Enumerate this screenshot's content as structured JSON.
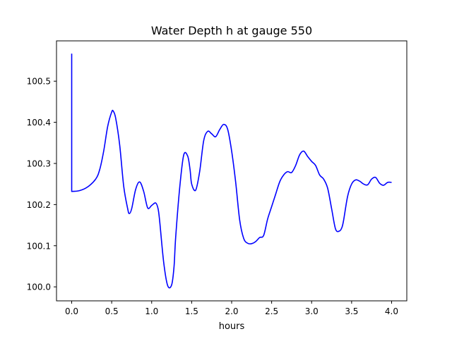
{
  "chart_data": {
    "type": "line",
    "title": "Water Depth h at gauge 550",
    "xlabel": "hours",
    "ylabel": "",
    "xlim": [
      -0.19,
      4.19
    ],
    "ylim": [
      99.966,
      100.598
    ],
    "xticks": [
      0.0,
      0.5,
      1.0,
      1.5,
      2.0,
      2.5,
      3.0,
      3.5,
      4.0
    ],
    "xtick_labels": [
      "0.0",
      "0.5",
      "1.0",
      "1.5",
      "2.0",
      "2.5",
      "3.0",
      "3.5",
      "4.0"
    ],
    "yticks": [
      100.0,
      100.1,
      100.2,
      100.3,
      100.4,
      100.5
    ],
    "ytick_labels": [
      "100.0",
      "100.1",
      "100.2",
      "100.3",
      "100.4",
      "100.5"
    ],
    "grid": false,
    "legend": "none",
    "series": [
      {
        "color": "#0000ff",
        "x": [
          0.0,
          0.0,
          0.0,
          0.1,
          0.2,
          0.3,
          0.35,
          0.4,
          0.45,
          0.5,
          0.52,
          0.55,
          0.6,
          0.65,
          0.7,
          0.72,
          0.75,
          0.8,
          0.85,
          0.9,
          0.95,
          1.0,
          1.05,
          1.08,
          1.1,
          1.15,
          1.2,
          1.25,
          1.28,
          1.3,
          1.35,
          1.4,
          1.45,
          1.48,
          1.5,
          1.55,
          1.6,
          1.65,
          1.7,
          1.75,
          1.8,
          1.85,
          1.9,
          1.95,
          2.0,
          2.05,
          2.1,
          2.15,
          2.2,
          2.25,
          2.3,
          2.35,
          2.4,
          2.45,
          2.5,
          2.55,
          2.6,
          2.65,
          2.7,
          2.75,
          2.8,
          2.85,
          2.9,
          2.95,
          3.0,
          3.05,
          3.1,
          3.15,
          3.2,
          3.25,
          3.3,
          3.35,
          3.38,
          3.4,
          3.45,
          3.5,
          3.55,
          3.6,
          3.65,
          3.7,
          3.75,
          3.8,
          3.85,
          3.9,
          3.95,
          4.0
        ],
        "y": [
          100.567,
          100.566,
          100.232,
          100.234,
          100.243,
          100.262,
          100.285,
          100.33,
          100.39,
          100.425,
          100.427,
          100.41,
          100.345,
          100.245,
          100.19,
          100.178,
          100.19,
          100.237,
          100.255,
          100.232,
          100.192,
          100.198,
          100.204,
          100.19,
          100.16,
          100.06,
          100.003,
          100.005,
          100.05,
          100.12,
          100.24,
          100.32,
          100.318,
          100.285,
          100.25,
          100.235,
          100.28,
          100.355,
          100.378,
          100.372,
          100.365,
          100.382,
          100.395,
          100.383,
          100.33,
          100.255,
          100.163,
          100.118,
          100.106,
          100.105,
          100.11,
          100.12,
          100.125,
          100.165,
          100.195,
          100.225,
          100.255,
          100.272,
          100.28,
          100.278,
          100.295,
          100.321,
          100.33,
          100.317,
          100.305,
          100.295,
          100.272,
          100.262,
          100.24,
          100.19,
          100.14,
          100.136,
          100.145,
          100.162,
          100.22,
          100.25,
          100.26,
          100.257,
          100.25,
          100.248,
          100.262,
          100.266,
          100.252,
          100.247,
          100.254,
          100.254
        ]
      }
    ]
  }
}
